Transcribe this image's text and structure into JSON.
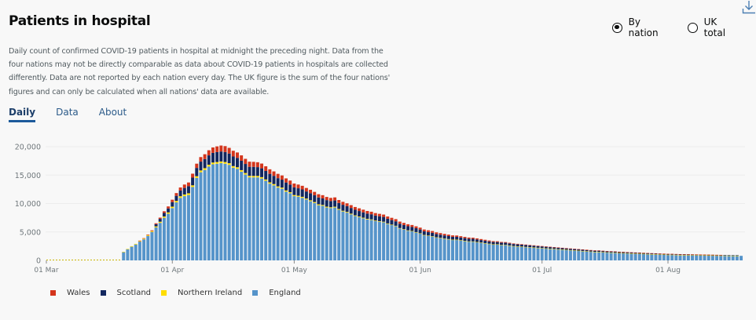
{
  "header": {
    "title": "Patients in hospital",
    "description": "Daily count of confirmed COVID-19 patients in hospital at midnight the preceding night. Data from the four nations may not be directly comparable as data about COVID-19 patients in hospitals are collected differently. Data are not reported by each nation every day. The UK figure is the sum of the four nations' figures and can only be calculated when all nations' data are available.",
    "download_icon": "download-icon"
  },
  "toggle": {
    "options": [
      {
        "label": "By nation",
        "selected": true
      },
      {
        "label": "UK total",
        "selected": false
      }
    ]
  },
  "tabs": [
    {
      "label": "Daily",
      "active": true
    },
    {
      "label": "Data",
      "active": false
    },
    {
      "label": "About",
      "active": false
    }
  ],
  "chart_data": {
    "type": "bar",
    "stacked": true,
    "title": "Patients in hospital",
    "xlabel": "",
    "ylabel": "",
    "ylim": [
      0,
      20000
    ],
    "yticks": [
      0,
      5000,
      10000,
      15000,
      20000
    ],
    "ytick_labels": [
      "0",
      "5,000",
      "10,000",
      "15,000",
      "20,000"
    ],
    "xticks": [
      "01 Mar",
      "01 Apr",
      "01 May",
      "01 Jun",
      "01 Jul",
      "01 Aug"
    ],
    "x_start": "01 Mar",
    "x_end": "19 Aug",
    "first_bar_date": "20 Mar",
    "grid": true,
    "legend_position": "bottom-left",
    "colors": {
      "England": "#5694ca",
      "Northern Ireland": "#ffdd00",
      "Scotland": "#12275f",
      "Wales": "#d4351c"
    },
    "stack_order": [
      "England",
      "Northern Ireland",
      "Scotland",
      "Wales"
    ],
    "legend": [
      "Wales",
      "Scotland",
      "Northern Ireland",
      "England"
    ],
    "series": [
      {
        "name": "England",
        "values": [
          1450,
          1950,
          2400,
          2800,
          3300,
          3700,
          4300,
          5000,
          5800,
          6600,
          7500,
          8200,
          9200,
          10200,
          11000,
          11300,
          11500,
          12900,
          14500,
          15500,
          15900,
          16500,
          16900,
          17000,
          17100,
          17000,
          16800,
          16300,
          16100,
          15600,
          15100,
          14600,
          14600,
          14600,
          14400,
          14000,
          13500,
          13200,
          12800,
          12600,
          12100,
          11800,
          11300,
          11200,
          11000,
          10700,
          10400,
          10100,
          9700,
          9600,
          9300,
          9200,
          9300,
          8900,
          8600,
          8400,
          8100,
          7800,
          7600,
          7400,
          7200,
          7100,
          6900,
          6800,
          6700,
          6400,
          6200,
          6000,
          5600,
          5400,
          5200,
          5100,
          4900,
          4700,
          4400,
          4300,
          4200,
          4000,
          3900,
          3800,
          3700,
          3600,
          3600,
          3500,
          3400,
          3300,
          3300,
          3200,
          3100,
          3000,
          2900,
          2800,
          2800,
          2700,
          2700,
          2600,
          2500,
          2450,
          2400,
          2350,
          2300,
          2250,
          2200,
          2150,
          2100,
          2050,
          2000,
          1950,
          1900,
          1850,
          1800,
          1750,
          1700,
          1650,
          1600,
          1550,
          1500,
          1500,
          1450,
          1400,
          1380,
          1350,
          1300,
          1280,
          1250,
          1220,
          1200,
          1180,
          1150,
          1120,
          1100,
          1080,
          1050,
          1030,
          1000,
          1000,
          980,
          960,
          950,
          940,
          930,
          920,
          910,
          900,
          890,
          880,
          870,
          860,
          850,
          840,
          830,
          820,
          800
        ]
      },
      {
        "name": "Northern Ireland",
        "values": [
          60,
          80,
          100,
          110,
          120,
          130,
          150,
          160,
          180,
          200,
          220,
          240,
          250,
          260,
          280,
          290,
          300,
          300,
          310,
          320,
          320,
          320,
          310,
          300,
          300,
          300,
          290,
          280,
          280,
          270,
          260,
          260,
          250,
          250,
          240,
          230,
          220,
          220,
          210,
          200,
          200,
          190,
          190,
          180,
          180,
          170,
          170,
          160,
          160,
          150,
          150,
          140,
          140,
          140,
          130,
          130,
          120,
          120,
          120,
          110,
          110,
          110,
          100,
          100,
          100,
          95,
          90,
          90,
          85,
          80,
          80,
          75,
          75,
          70,
          70,
          65,
          60,
          60,
          60,
          55,
          55,
          50,
          50,
          50,
          45,
          45,
          40,
          40,
          40,
          40,
          35,
          35,
          35,
          35,
          30,
          30,
          30,
          30,
          30,
          28,
          28,
          26,
          26,
          25,
          25,
          24,
          24,
          23,
          22,
          22,
          21,
          20,
          20,
          20,
          19,
          18,
          18,
          18,
          17,
          17,
          16,
          16,
          15,
          15,
          15,
          14,
          14,
          13,
          13,
          12,
          12,
          12,
          11,
          11,
          10,
          10,
          10,
          10,
          9,
          9,
          9,
          8,
          8,
          8,
          8,
          7,
          7,
          7,
          7,
          7,
          6,
          6,
          0
        ]
      },
      {
        "name": "Scotland",
        "values": [
          0,
          0,
          0,
          0,
          0,
          0,
          0,
          0,
          380,
          500,
          620,
          700,
          800,
          900,
          1000,
          1150,
          1250,
          1350,
          1450,
          1550,
          1600,
          1650,
          1700,
          1750,
          1750,
          1750,
          1700,
          1700,
          1650,
          1650,
          1600,
          1600,
          1600,
          1550,
          1550,
          1500,
          1500,
          1450,
          1450,
          1400,
          1400,
          1350,
          1350,
          1300,
          1300,
          1250,
          1250,
          1200,
          1200,
          1150,
          1150,
          1100,
          1100,
          1050,
          1050,
          1000,
          1000,
          980,
          960,
          940,
          920,
          900,
          880,
          860,
          840,
          820,
          800,
          780,
          760,
          740,
          720,
          700,
          680,
          660,
          640,
          620,
          600,
          580,
          560,
          540,
          520,
          500,
          490,
          480,
          470,
          460,
          450,
          440,
          430,
          420,
          410,
          400,
          390,
          380,
          370,
          360,
          350,
          340,
          330,
          320,
          310,
          300,
          290,
          280,
          270,
          260,
          250,
          245,
          240,
          235,
          230,
          225,
          220,
          215,
          210,
          205,
          200,
          195,
          190,
          185,
          180,
          175,
          170,
          165,
          160,
          155,
          150,
          145,
          140,
          135,
          130,
          125,
          120,
          118,
          116,
          114,
          112,
          110,
          108,
          106,
          104,
          102,
          100,
          98,
          96,
          94,
          92,
          90,
          88,
          86,
          84,
          82,
          0
        ]
      },
      {
        "name": "Wales",
        "values": [
          0,
          0,
          0,
          0,
          60,
          80,
          100,
          130,
          170,
          220,
          300,
          350,
          420,
          480,
          540,
          600,
          650,
          700,
          750,
          800,
          850,
          900,
          950,
          1000,
          1050,
          1050,
          1000,
          1000,
          950,
          950,
          900,
          900,
          880,
          860,
          840,
          820,
          800,
          780,
          760,
          740,
          720,
          700,
          680,
          660,
          640,
          620,
          600,
          590,
          580,
          570,
          560,
          550,
          540,
          530,
          520,
          510,
          500,
          490,
          480,
          470,
          460,
          450,
          440,
          430,
          420,
          410,
          400,
          390,
          380,
          370,
          360,
          350,
          340,
          330,
          320,
          310,
          300,
          290,
          280,
          270,
          260,
          250,
          240,
          230,
          220,
          210,
          200,
          190,
          180,
          170,
          160,
          150,
          140,
          130,
          120,
          110,
          100,
          95,
          90,
          85,
          80,
          75,
          70,
          68,
          66,
          64,
          62,
          60,
          58,
          56,
          54,
          52,
          50,
          50,
          48,
          48,
          46,
          46,
          44,
          44,
          42,
          42,
          40,
          40,
          38,
          38,
          36,
          36,
          34,
          34,
          32,
          32,
          30,
          30,
          28,
          28,
          26,
          26,
          24,
          24,
          22,
          22,
          20,
          20,
          18,
          18,
          16,
          16,
          0
        ]
      }
    ]
  }
}
